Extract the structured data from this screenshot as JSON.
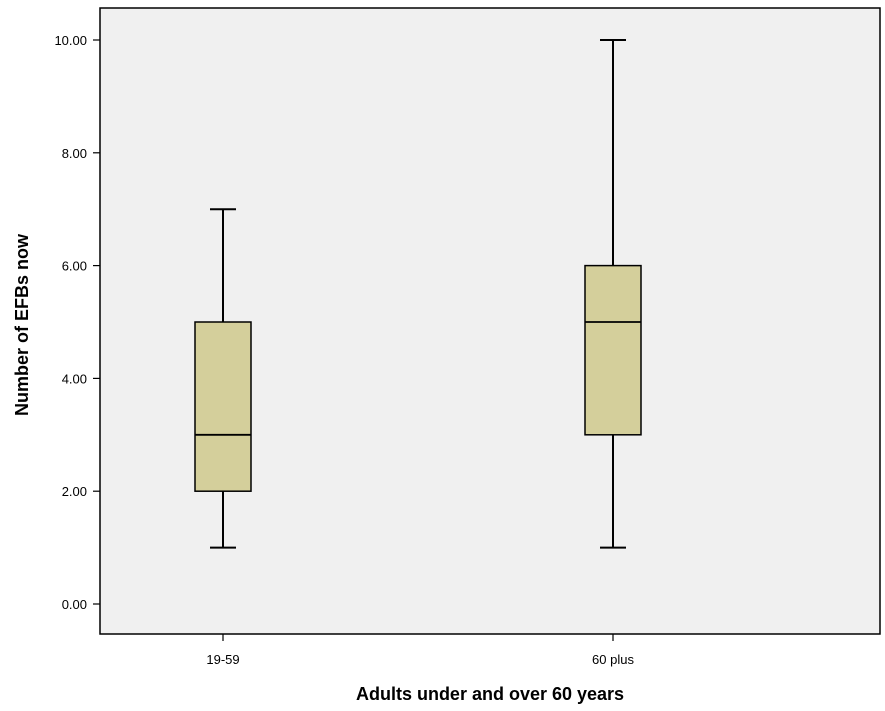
{
  "chart_data": {
    "type": "boxplot",
    "xlabel": "Adults under and over 60 years",
    "ylabel": "Number of EFBs now",
    "ylim": [
      0,
      10
    ],
    "yticks": [
      0,
      2,
      4,
      6,
      8,
      10
    ],
    "ytick_labels": [
      "0.00",
      "2.00",
      "4.00",
      "6.00",
      "8.00",
      "10.00"
    ],
    "categories": [
      "19-59",
      "60 plus"
    ],
    "boxes": [
      {
        "category": "19-59",
        "min": 1,
        "q1": 2,
        "median": 3,
        "q3": 5,
        "max": 7
      },
      {
        "category": "60 plus",
        "min": 1,
        "q1": 3,
        "median": 5,
        "q3": 6,
        "max": 10
      }
    ],
    "colors": {
      "plot_background": "#f0f0f0",
      "box_fill": "#d4cf9b",
      "line": "#000000"
    },
    "grid": false,
    "legend": "none"
  }
}
